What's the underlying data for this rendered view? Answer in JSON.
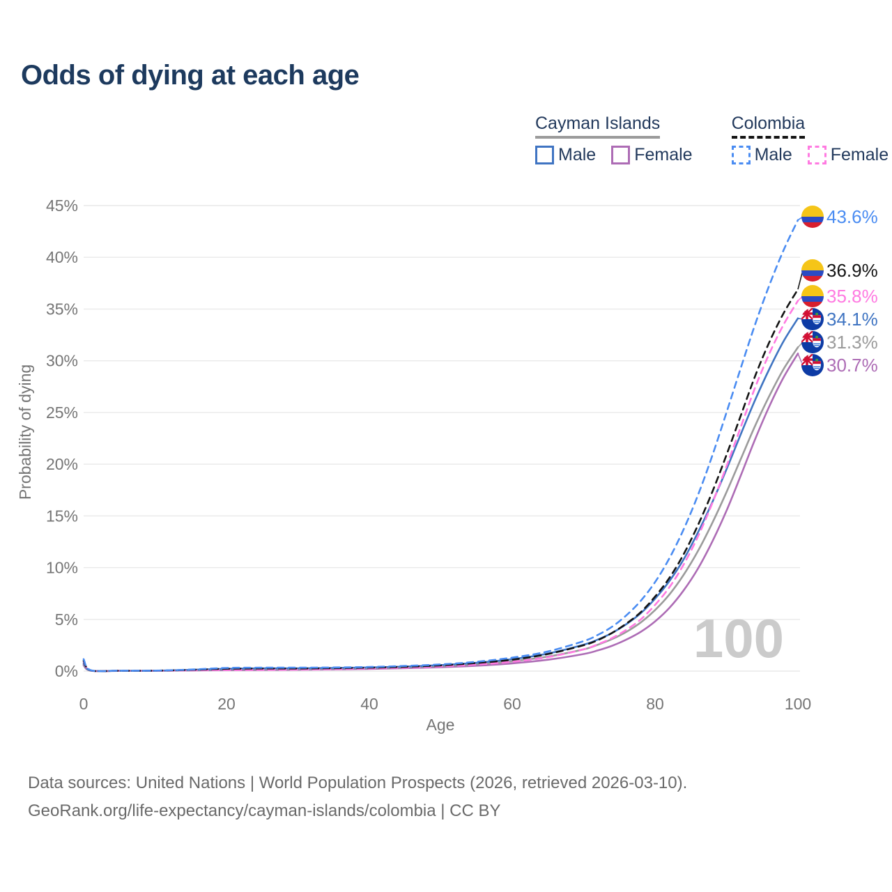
{
  "header": {
    "title": "Odds of dying at each age"
  },
  "legend": {
    "cayman": {
      "label": "Cayman Islands",
      "male": "Male",
      "female": "Female"
    },
    "colombia": {
      "label": "Colombia",
      "male": "Male",
      "female": "Female"
    }
  },
  "watermark": "100",
  "footer": {
    "line1": "Data sources: United Nations | World Population Prospects (2026, retrieved 2026-03-10).",
    "line2": "GeoRank.org/life-expectancy/cayman-islands/colombia | CC BY"
  },
  "colors": {
    "title_text": "#1d3a5e",
    "legend_text": "#22395c",
    "axis_text": "#757575",
    "gridline": "#e9e9e9",
    "watermark": "#cbcbcb",
    "footer_text": "#696969"
  },
  "chart_data": {
    "type": "line",
    "title": "Odds of dying at each age",
    "xlabel": "Age",
    "ylabel": "Probability of dying",
    "xlim": [
      0,
      100
    ],
    "ylim": [
      0,
      45
    ],
    "grid": true,
    "legend_position": "top-right",
    "xticks": [
      0,
      20,
      40,
      60,
      80,
      100
    ],
    "xtick_labels": [
      "0",
      "20",
      "40",
      "60",
      "80",
      "100"
    ],
    "yticks": [
      0,
      5,
      10,
      15,
      20,
      25,
      30,
      35,
      40,
      45
    ],
    "ytick_labels": [
      "0%",
      "5%",
      "10%",
      "15%",
      "20%",
      "25%",
      "30%",
      "35%",
      "40%",
      "45%"
    ],
    "x": [
      0,
      1,
      5,
      10,
      15,
      20,
      25,
      30,
      35,
      40,
      45,
      50,
      55,
      60,
      65,
      70,
      72,
      74,
      76,
      78,
      80,
      82,
      84,
      86,
      88,
      90,
      92,
      94,
      96,
      98,
      100
    ],
    "series": [
      {
        "name": "Colombia Male",
        "flag": "colombia",
        "style": "dashed",
        "color": "#4a8cf2",
        "end_value": 43.6,
        "end_label": "43.6%",
        "values": [
          1.15,
          0.08,
          0.04,
          0.05,
          0.15,
          0.3,
          0.33,
          0.33,
          0.35,
          0.4,
          0.5,
          0.65,
          0.9,
          1.3,
          1.9,
          2.9,
          3.5,
          4.3,
          5.4,
          6.8,
          8.6,
          10.9,
          13.7,
          17.0,
          20.8,
          25.0,
          29.3,
          33.5,
          37.3,
          40.7,
          43.6
        ]
      },
      {
        "name": "Colombia",
        "flag": "colombia",
        "style": "dashed",
        "color": "#141414",
        "end_value": 36.9,
        "end_label": "36.9%",
        "values": [
          1.0,
          0.07,
          0.035,
          0.04,
          0.12,
          0.22,
          0.25,
          0.25,
          0.28,
          0.33,
          0.42,
          0.55,
          0.78,
          1.1,
          1.65,
          2.5,
          3.0,
          3.7,
          4.6,
          5.7,
          7.2,
          9.0,
          11.3,
          14.1,
          17.3,
          20.9,
          24.7,
          28.5,
          31.8,
          34.6,
          36.9
        ]
      },
      {
        "name": "Colombia Female",
        "flag": "colombia",
        "style": "dashed",
        "color": "#ff7ae1",
        "end_value": 35.8,
        "end_label": "35.8%",
        "values": [
          0.9,
          0.06,
          0.03,
          0.035,
          0.07,
          0.1,
          0.12,
          0.14,
          0.18,
          0.25,
          0.33,
          0.45,
          0.63,
          0.9,
          1.35,
          2.1,
          2.6,
          3.2,
          4.0,
          5.0,
          6.4,
          8.1,
          10.3,
          13.0,
          16.2,
          19.8,
          23.6,
          27.4,
          30.7,
          33.5,
          35.8
        ]
      },
      {
        "name": "Cayman Islands Male",
        "flag": "cayman",
        "style": "solid",
        "color": "#3f74c2",
        "end_value": 34.1,
        "end_label": "34.1%",
        "values": [
          0.75,
          0.06,
          0.03,
          0.04,
          0.12,
          0.22,
          0.26,
          0.27,
          0.3,
          0.35,
          0.44,
          0.58,
          0.8,
          1.15,
          1.7,
          2.55,
          3.05,
          3.7,
          4.55,
          5.6,
          7.0,
          8.7,
          10.8,
          13.4,
          16.3,
          19.5,
          22.9,
          26.2,
          29.2,
          31.9,
          34.1
        ]
      },
      {
        "name": "Cayman Islands",
        "flag": "cayman",
        "style": "solid",
        "color": "#9b9b9b",
        "end_value": 31.3,
        "end_label": "31.3%",
        "values": [
          0.65,
          0.05,
          0.025,
          0.035,
          0.09,
          0.16,
          0.19,
          0.2,
          0.23,
          0.28,
          0.36,
          0.48,
          0.66,
          0.95,
          1.4,
          2.1,
          2.55,
          3.1,
          3.8,
          4.7,
          5.9,
          7.4,
          9.3,
          11.6,
          14.3,
          17.3,
          20.5,
          23.7,
          26.6,
          29.2,
          31.3
        ]
      },
      {
        "name": "Cayman Islands Female",
        "flag": "cayman",
        "style": "solid",
        "color": "#ad6cb5",
        "end_value": 30.7,
        "end_label": "30.7%",
        "values": [
          0.55,
          0.04,
          0.02,
          0.03,
          0.06,
          0.09,
          0.11,
          0.13,
          0.16,
          0.21,
          0.28,
          0.38,
          0.52,
          0.75,
          1.1,
          1.65,
          2.0,
          2.45,
          3.05,
          3.8,
          4.8,
          6.1,
          7.8,
          9.9,
          12.5,
          15.5,
          18.9,
          22.4,
          25.6,
          28.4,
          30.7
        ]
      }
    ]
  }
}
